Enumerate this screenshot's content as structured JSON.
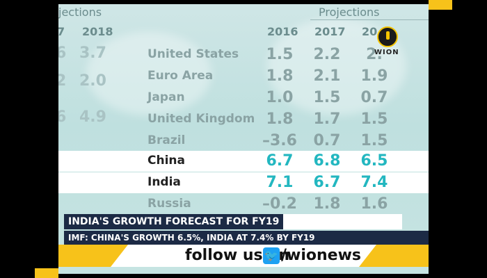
{
  "table": {
    "left_header": "jections",
    "right_header": "Projections",
    "left_years": [
      "7",
      "2018"
    ],
    "right_years": [
      "2016",
      "2017",
      "20"
    ],
    "rows": [
      {
        "country": "United States",
        "values": [
          "1.5",
          "2.2",
          "2."
        ],
        "highlight": false
      },
      {
        "country": "Euro Area",
        "values": [
          "1.8",
          "2.1",
          "1.9"
        ],
        "highlight": false
      },
      {
        "country": "Japan",
        "values": [
          "1.0",
          "1.5",
          "0.7"
        ],
        "highlight": false
      },
      {
        "country": "United Kingdom",
        "values": [
          "1.8",
          "1.7",
          "1.5"
        ],
        "highlight": false
      },
      {
        "country": "Brazil",
        "values": [
          "–3.6",
          "0.7",
          "1.5"
        ],
        "highlight": false
      },
      {
        "country": "China",
        "values": [
          "6.7",
          "6.8",
          "6.5"
        ],
        "highlight": true
      },
      {
        "country": "India",
        "values": [
          "7.1",
          "6.7",
          "7.4"
        ],
        "highlight": true
      },
      {
        "country": "Russia",
        "values": [
          "–0.2",
          "1.8",
          "1.6"
        ],
        "highlight": false
      }
    ],
    "ghost_values": [
      "6",
      "3.7",
      "2",
      "2.0",
      "6",
      "4.9",
      "7"
    ]
  },
  "logo": {
    "text": "WION"
  },
  "banner": {
    "title": "INDIA'S GROWTH FORECAST FOR FY19",
    "subtitle": "IMF: CHINA'S GROWTH 6.5%, INDIA AT 7.4% BY FY19"
  },
  "follow": {
    "text": "follow us on",
    "handle": "/wionews",
    "icon": "twitter-icon"
  },
  "colors": {
    "highlight_value": "#23b7c0",
    "banner_bg": "#1c2a45",
    "accent": "#f7c21a"
  }
}
